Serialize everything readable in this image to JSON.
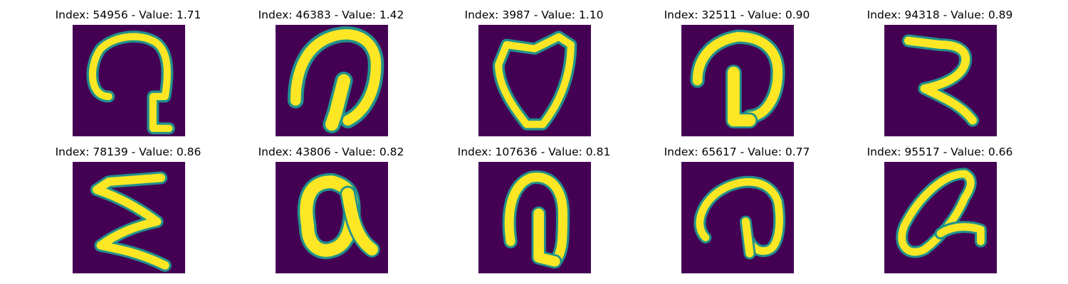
{
  "colors": {
    "background": "#440154",
    "stroke_mid": "#21918c",
    "stroke": "#fde725"
  },
  "panels": [
    {
      "index": "54956",
      "value": "1.71",
      "title": "Index: 54956 - Value: 1.71",
      "glyph": "loop-hook-down"
    },
    {
      "index": "46383",
      "value": "1.42",
      "title": "Index: 46383 - Value: 1.42",
      "glyph": "thick-hook-down"
    },
    {
      "index": "3987",
      "value": "1.10",
      "title": "Index: 3987 - Value: 1.10",
      "glyph": "heart-shape"
    },
    {
      "index": "32511",
      "value": "0.90",
      "title": "Index: 32511 - Value: 0.90",
      "glyph": "d-shape"
    },
    {
      "index": "94318",
      "value": "0.89",
      "title": "Index: 94318 - Value: 0.89",
      "glyph": "r-shape"
    },
    {
      "index": "78139",
      "value": "0.86",
      "title": "Index: 78139 - Value: 0.86",
      "glyph": "zigzag"
    },
    {
      "index": "43806",
      "value": "0.82",
      "title": "Index: 43806 - Value: 0.82",
      "glyph": "q-shape"
    },
    {
      "index": "107636",
      "value": "0.81",
      "title": "Index: 107636 - Value: 0.81",
      "glyph": "arch-hook"
    },
    {
      "index": "65617",
      "value": "0.77",
      "title": "Index: 65617 - Value: 0.77",
      "glyph": "wide-arch-hook"
    },
    {
      "index": "95517",
      "value": "0.66",
      "title": "Index: 95517 - Value: 0.66",
      "glyph": "slanted-loop"
    }
  ]
}
